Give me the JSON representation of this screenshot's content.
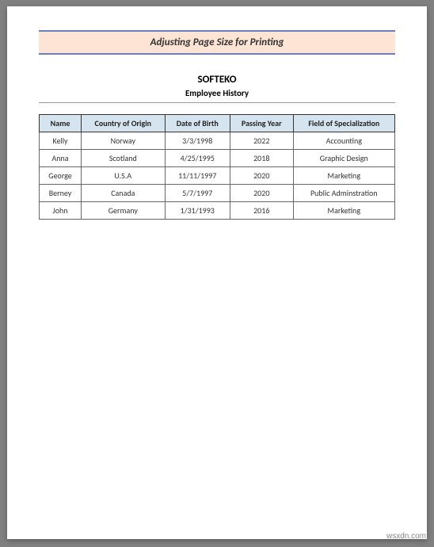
{
  "banner": {
    "text": "Adjusting Page Size for Printing",
    "background_color": "#fde4d4",
    "border_color": "#6a7ec7"
  },
  "header": {
    "company": "SOFTEKO",
    "subtitle": "Employee History"
  },
  "table": {
    "header_background": "#d6e4f0",
    "columns": [
      "Name",
      "Country of Origin",
      "Date of Birth",
      "Passing Year",
      "Field of Specialization"
    ],
    "rows": [
      [
        "Kelly",
        "Norway",
        "3/3/1998",
        "2022",
        "Accounting"
      ],
      [
        "Anna",
        "Scotland",
        "4/25/1995",
        "2018",
        "Graphic Design"
      ],
      [
        "George",
        "U.S.A",
        "11/11/1997",
        "2020",
        "Marketing"
      ],
      [
        "Berney",
        "Canada",
        "5/7/1997",
        "2020",
        "Public Adminstration"
      ],
      [
        "John",
        "Germany",
        "1/31/1993",
        "2016",
        "Marketing"
      ]
    ]
  },
  "watermark": "wsxdn.com"
}
